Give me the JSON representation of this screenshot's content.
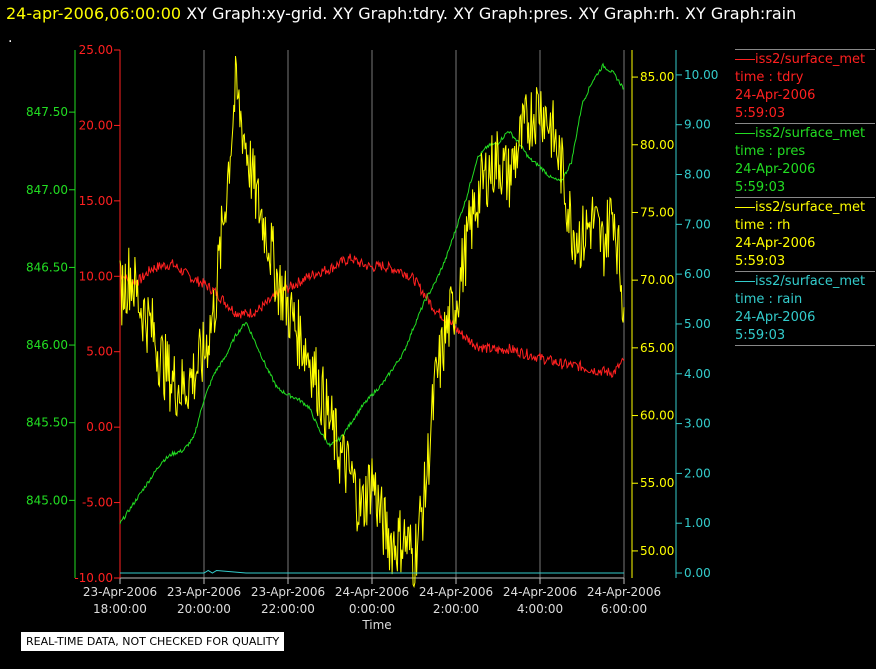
{
  "header": {
    "timestamp": "24-apr-2006,06:00:00",
    "titles": "XY Graph:xy-grid.  XY Graph:tdry.  XY Graph:pres.  XY Graph:rh.  XY Graph:rain"
  },
  "dot": ".",
  "footer": {
    "text": "REAL-TIME DATA, NOT CHECKED FOR QUALITY"
  },
  "legend": [
    {
      "name": "iss2/surface_met",
      "field": "time : tdry",
      "date": "24-Apr-2006",
      "time": "5:59:03",
      "color": "#ff2020"
    },
    {
      "name": "iss2/surface_met",
      "field": "time : pres",
      "date": "24-Apr-2006",
      "time": "5:59:03",
      "color": "#22dd22"
    },
    {
      "name": "iss2/surface_met",
      "field": "time : rh",
      "date": "24-Apr-2006",
      "time": "5:59:03",
      "color": "#ffff00"
    },
    {
      "name": "iss2/surface_met",
      "field": "time : rain",
      "date": "24-Apr-2006",
      "time": "5:59:03",
      "color": "#33cccc"
    }
  ],
  "chart_data": {
    "type": "line",
    "xlabel": "Time",
    "x_ticks": [
      {
        "date": "23-Apr-2006",
        "time": "18:00:00",
        "hours": 0
      },
      {
        "date": "23-Apr-2006",
        "time": "20:00:00",
        "hours": 2
      },
      {
        "date": "23-Apr-2006",
        "time": "22:00:00",
        "hours": 4
      },
      {
        "date": "24-Apr-2006",
        "time": "0:00:00",
        "hours": 6
      },
      {
        "date": "24-Apr-2006",
        "time": "2:00:00",
        "hours": 8
      },
      {
        "date": "24-Apr-2006",
        "time": "4:00:00",
        "hours": 10
      },
      {
        "date": "24-Apr-2006",
        "time": "6:00:00",
        "hours": 12
      }
    ],
    "axes": {
      "tdry": {
        "range": [
          -10,
          25
        ],
        "ticks": [
          "-10.00",
          "-5.00",
          "0.00",
          "5.00",
          "10.00",
          "15.00",
          "20.00",
          "25.00"
        ],
        "color": "#ff2020"
      },
      "pres": {
        "range": [
          844.5,
          847.9
        ],
        "ticks": [
          "845.00",
          "845.50",
          "846.00",
          "846.50",
          "847.00",
          "847.50"
        ],
        "color": "#22dd22"
      },
      "rh": {
        "range": [
          48.0,
          87.0
        ],
        "ticks": [
          "50.00",
          "55.00",
          "60.00",
          "65.00",
          "70.00",
          "75.00",
          "80.00",
          "85.00"
        ],
        "color": "#ffff00"
      },
      "rain": {
        "range": [
          -0.1,
          10.5
        ],
        "ticks": [
          "0.00",
          "1.00",
          "2.00",
          "3.00",
          "4.00",
          "5.00",
          "6.00",
          "7.00",
          "8.00",
          "9.00",
          "10.00"
        ],
        "color": "#33cccc"
      }
    },
    "grid": true,
    "series": [
      {
        "name": "tdry",
        "axis": "tdry",
        "color": "#ff2020",
        "x": [
          0,
          0.25,
          0.5,
          0.75,
          1,
          1.25,
          1.5,
          1.75,
          2,
          2.25,
          2.5,
          2.75,
          3,
          3.25,
          3.5,
          3.75,
          4,
          4.25,
          4.5,
          4.75,
          5,
          5.25,
          5.5,
          5.75,
          6,
          6.25,
          6.5,
          6.75,
          7,
          7.25,
          7.5,
          7.75,
          8,
          8.25,
          8.5,
          8.75,
          9,
          9.25,
          9.5,
          9.75,
          10,
          10.25,
          10.5,
          10.75,
          11,
          11.25,
          11.5,
          11.75,
          12
        ],
        "values": [
          10.2,
          9.6,
          9.8,
          10.5,
          10.7,
          10.8,
          10.3,
          9.8,
          9.5,
          9.0,
          8.3,
          7.6,
          7.5,
          7.7,
          8.2,
          8.8,
          9.2,
          9.6,
          10.0,
          10.3,
          10.5,
          10.9,
          11.2,
          10.8,
          10.6,
          10.7,
          10.5,
          10.3,
          9.8,
          8.8,
          7.8,
          7.2,
          6.5,
          5.9,
          5.4,
          5.2,
          5.1,
          5.2,
          5.0,
          4.8,
          4.6,
          4.4,
          4.2,
          4.1,
          4.0,
          3.8,
          3.7,
          3.6,
          4.4
        ]
      },
      {
        "name": "pres",
        "axis": "pres",
        "color": "#22dd22",
        "x": [
          0,
          0.25,
          0.5,
          0.75,
          1,
          1.25,
          1.5,
          1.75,
          2,
          2.25,
          2.5,
          2.75,
          3,
          3.25,
          3.5,
          3.75,
          4,
          4.25,
          4.5,
          4.75,
          5,
          5.25,
          5.5,
          5.75,
          6,
          6.25,
          6.5,
          6.75,
          7,
          7.25,
          7.5,
          7.75,
          8,
          8.25,
          8.5,
          8.75,
          9,
          9.25,
          9.5,
          9.75,
          10,
          10.25,
          10.5,
          10.75,
          11,
          11.25,
          11.5,
          11.75,
          12
        ],
        "values": [
          844.85,
          844.95,
          845.05,
          845.15,
          845.25,
          845.3,
          845.32,
          845.4,
          845.65,
          845.82,
          845.92,
          846.06,
          846.15,
          846.0,
          845.85,
          845.72,
          845.68,
          845.65,
          845.6,
          845.45,
          845.35,
          845.4,
          845.5,
          845.6,
          845.68,
          845.75,
          845.85,
          845.95,
          846.12,
          846.28,
          846.4,
          846.55,
          846.75,
          846.95,
          847.2,
          847.28,
          847.3,
          847.38,
          847.3,
          847.2,
          847.15,
          847.08,
          847.05,
          847.18,
          847.55,
          847.7,
          847.8,
          847.75,
          847.65
        ]
      },
      {
        "name": "rh",
        "axis": "rh",
        "color": "#ffff00",
        "x": [
          0,
          0.25,
          0.5,
          0.75,
          1,
          1.25,
          1.5,
          1.75,
          2,
          2.25,
          2.5,
          2.75,
          3,
          3.25,
          3.5,
          3.75,
          4,
          4.25,
          4.5,
          4.75,
          5,
          5.25,
          5.5,
          5.75,
          6,
          6.25,
          6.5,
          6.75,
          7,
          7.25,
          7.5,
          7.75,
          8,
          8.25,
          8.5,
          8.75,
          9,
          9.25,
          9.5,
          9.75,
          10,
          10.25,
          10.5,
          10.75,
          11,
          11.25,
          11.5,
          11.75,
          12
        ],
        "values": [
          69.0,
          70.5,
          68.0,
          66.5,
          64.0,
          62.5,
          62.0,
          63.0,
          64.5,
          68.0,
          75.5,
          84.0,
          80.0,
          76.0,
          73.5,
          70.0,
          68.0,
          66.0,
          64.5,
          62.0,
          59.5,
          57.0,
          55.5,
          53.0,
          55.5,
          52.0,
          50.5,
          51.0,
          49.5,
          54.0,
          62.0,
          66.0,
          68.5,
          72.5,
          76.0,
          78.0,
          79.0,
          77.5,
          80.0,
          82.0,
          83.0,
          81.5,
          78.5,
          74.0,
          73.0,
          74.5,
          72.5,
          75.5,
          68.0
        ]
      },
      {
        "name": "rain",
        "axis": "rain",
        "color": "#33cccc",
        "x": [
          0,
          2,
          2.1,
          2.2,
          2.3,
          3,
          4,
          6,
          8,
          10,
          12
        ],
        "values": [
          0,
          0,
          0.05,
          0,
          0.05,
          0,
          0,
          0,
          0,
          0,
          0
        ]
      }
    ]
  }
}
